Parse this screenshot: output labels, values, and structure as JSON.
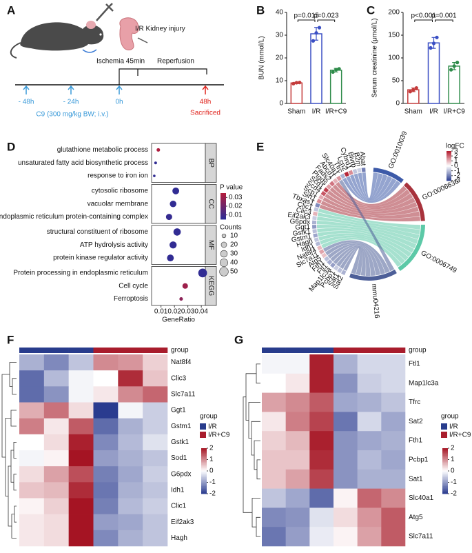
{
  "panel_a": {
    "letter": "A",
    "injury": "I/R Kidney injury",
    "ischemia": "Ischemia 45min",
    "reperfusion": "Reperfusion",
    "timepoints": [
      "- 48h",
      "- 24h",
      "0h",
      "48h"
    ],
    "treatment": "C9 (300 mg/kg BW; i.v.)",
    "endpoint": "Sacrificed"
  },
  "chart_data": [
    {
      "type": "bar",
      "panel": "B",
      "ylabel": "BUN (mmol/L)",
      "categories": [
        "Sham",
        "I/R",
        "I/R+C9"
      ],
      "values": [
        9.0,
        30.6,
        14.6
      ],
      "errors": [
        0.3,
        2.8,
        0.8
      ],
      "points": [
        [
          8.7,
          9.1,
          9.2
        ],
        [
          27.5,
          31.0,
          33.3
        ],
        [
          13.8,
          14.8,
          15.2
        ]
      ],
      "colors": [
        "#c43b3b",
        "#3a4fc4",
        "#2e8b4a"
      ],
      "ylim": [
        0,
        40
      ],
      "yticks": [
        0,
        10,
        20,
        30,
        40
      ],
      "annotations": [
        {
          "text": "p=0.015",
          "from": 0,
          "to": 1
        },
        {
          "text": "p=0.023",
          "from": 1,
          "to": 2
        }
      ]
    },
    {
      "type": "bar",
      "panel": "C",
      "ylabel": "Serum creatinine (μmol/L)",
      "categories": [
        "Sham",
        "I/R",
        "I/R+C9"
      ],
      "values": [
        30,
        133,
        82
      ],
      "errors": [
        4,
        12,
        8
      ],
      "points": [
        [
          26,
          30,
          34
        ],
        [
          122,
          132,
          145
        ],
        [
          74,
          82,
          90
        ]
      ],
      "colors": [
        "#c43b3b",
        "#3a4fc4",
        "#2e8b4a"
      ],
      "ylim": [
        0,
        200
      ],
      "yticks": [
        0,
        50,
        100,
        150,
        200
      ],
      "annotations": [
        {
          "text": "p<0.001",
          "from": 0,
          "to": 1
        },
        {
          "text": "p=0.001",
          "from": 1,
          "to": 2
        }
      ]
    },
    {
      "type": "dotplot",
      "panel": "D",
      "xlabel": "GeneRatio",
      "xlim": [
        0.003,
        0.043
      ],
      "xticks": [
        0.01,
        0.02,
        0.03,
        0.04
      ],
      "groups": [
        {
          "name": "BP",
          "terms": [
            "glutathione metabolic process",
            "unsaturated fatty acid biosynthetic process",
            "response to iron ion"
          ],
          "x": [
            0.008,
            0.006,
            0.005
          ],
          "counts": [
            8,
            5,
            4
          ],
          "pvalues": [
            0.034,
            0.006,
            0.006
          ]
        },
        {
          "name": "CC",
          "terms": [
            "cytosolic ribosome",
            "vacuolar membrane",
            "endoplasmic reticulum protein-containing complex"
          ],
          "x": [
            0.021,
            0.019,
            0.016
          ],
          "counts": [
            30,
            28,
            25
          ],
          "pvalues": [
            0.006,
            0.006,
            0.007
          ]
        },
        {
          "name": "MF",
          "terms": [
            "structural constituent of ribosome",
            "ATP hydrolysis activity",
            "protein kinase regulator activity"
          ],
          "x": [
            0.022,
            0.019,
            0.017
          ],
          "counts": [
            35,
            33,
            30
          ],
          "pvalues": [
            0.006,
            0.006,
            0.006
          ]
        },
        {
          "name": "KEGG",
          "terms": [
            "Protein processing in endoplasmic reticulum",
            "Cell cycle",
            "Ferroptosis"
          ],
          "x": [
            0.041,
            0.028,
            0.025
          ],
          "counts": [
            50,
            20,
            8
          ],
          "pvalues": [
            0.006,
            0.03,
            0.026
          ]
        }
      ],
      "color_title": "P value",
      "clim": [
        0.005,
        0.035
      ],
      "cticks": [
        0.03,
        0.02,
        0.01
      ],
      "size_title": "Counts",
      "size_ticks": [
        10,
        20,
        30,
        40,
        50
      ]
    },
    {
      "type": "chord",
      "panel": "E",
      "terms": [
        "GO:0010039",
        "GO:0006636",
        "GO:0006749",
        "mmu04216"
      ],
      "term_colors": [
        "#3d5aa8",
        "#a8323c",
        "#5cc9a7",
        "#4d5f98"
      ],
      "genes": [
        "Sat2",
        "Sat1",
        "Pcbp1",
        "Map1lc3a",
        "Ftl1",
        "Fth1",
        "Atg5",
        "Slc7a11",
        "Nat8f4",
        "Idh1",
        "Hagh",
        "Gstm1",
        "Gstk1",
        "Ggt1",
        "G6pdx",
        "Eif2ak3",
        "Clic3",
        "Clic1",
        "Tbxas1",
        "Sirt1",
        "Scp1",
        "Scd4",
        "Scd1",
        "Ptgds",
        "Fads2",
        "Abcd1",
        "Slc40a1",
        "Tfrc",
        "Lcn2",
        "Cybrd1",
        "Blvrb",
        "B2m",
        "Abat"
      ],
      "logfc": [
        -1.2,
        -1.0,
        -0.8,
        -1.5,
        -1.3,
        -1.0,
        0.8,
        1.2,
        0.9,
        -1.1,
        -0.9,
        -1.4,
        -1.0,
        -1.6,
        -1.2,
        -0.8,
        1.0,
        -0.9,
        -1.8,
        1.5,
        1.1,
        2.2,
        2.5,
        1.3,
        1.8,
        1.0,
        1.4,
        -1.2,
        2.8,
        1.5,
        -0.9,
        -0.7,
        -2.0
      ],
      "gene_term": [
        3,
        3,
        3,
        3,
        3,
        3,
        3,
        3,
        2,
        2,
        2,
        2,
        2,
        2,
        2,
        2,
        2,
        2,
        1,
        1,
        1,
        1,
        1,
        1,
        1,
        1,
        3,
        0,
        0,
        0,
        0,
        0,
        0
      ],
      "legend_title": "logFC",
      "clim": [
        -3,
        3
      ],
      "cticks": [
        3,
        2,
        1,
        0,
        -1,
        -2,
        -3
      ]
    },
    {
      "type": "heatmap",
      "panel": "F",
      "group_title": "group",
      "groups": [
        "I/R",
        "I/R+C9"
      ],
      "group_colors": [
        "#283c8c",
        "#a81c2c"
      ],
      "column_groups": [
        0,
        0,
        0,
        1,
        1,
        1
      ],
      "rows": [
        "Nat8f4",
        "Clic3",
        "Slc7a11",
        "Ggt1",
        "Gstm1",
        "Gstk1",
        "Sod1",
        "G6pdx",
        "Idh1",
        "Clic1",
        "Eif2ak3",
        "Hagh"
      ],
      "values": [
        [
          -0.8,
          -1.2,
          -0.6,
          1.0,
          0.9,
          0.4
        ],
        [
          -1.5,
          -0.7,
          -0.1,
          0.0,
          1.8,
          0.5
        ],
        [
          -1.5,
          -1.1,
          -0.1,
          0.2,
          1.0,
          1.3
        ],
        [
          0.7,
          1.2,
          0.3,
          -2.0,
          -0.1,
          -0.5
        ],
        [
          1.1,
          0.2,
          1.4,
          -1.5,
          -0.8,
          -0.5
        ],
        [
          0.0,
          0.3,
          1.9,
          -1.2,
          -0.7,
          -0.3
        ],
        [
          -0.1,
          0.1,
          2.0,
          -1.0,
          -0.8,
          -0.6
        ],
        [
          0.3,
          0.8,
          1.5,
          -1.3,
          -0.9,
          -0.5
        ],
        [
          0.5,
          0.6,
          1.8,
          -1.4,
          -0.8,
          -0.6
        ],
        [
          0.1,
          0.4,
          2.0,
          -1.3,
          -0.7,
          -0.5
        ],
        [
          0.2,
          0.3,
          2.0,
          -1.0,
          -0.9,
          -0.6
        ],
        [
          0.2,
          0.3,
          2.0,
          -1.2,
          -0.8,
          -0.6
        ]
      ],
      "clim": [
        -2,
        2
      ],
      "cticks": [
        2,
        1,
        0,
        -1,
        -2
      ]
    },
    {
      "type": "heatmap",
      "panel": "G",
      "group_title": "group",
      "groups": [
        "I/R",
        "I/R+C9"
      ],
      "group_colors": [
        "#283c8c",
        "#a81c2c"
      ],
      "column_groups": [
        0,
        0,
        0,
        1,
        1,
        1
      ],
      "rows": [
        "Ftl1",
        "Map1lc3a",
        "Tfrc",
        "Sat2",
        "Fth1",
        "Pcbp1",
        "Sat1",
        "Slc40a1",
        "Atg5",
        "Slc7a11"
      ],
      "values": [
        [
          -0.1,
          -0.1,
          1.9,
          -0.8,
          -0.4,
          -0.4
        ],
        [
          0.0,
          0.2,
          1.9,
          -1.1,
          -0.5,
          -0.4
        ],
        [
          0.8,
          1.0,
          1.4,
          -0.9,
          -0.8,
          -0.6
        ],
        [
          0.2,
          1.1,
          1.6,
          -1.4,
          -0.4,
          -0.9
        ],
        [
          0.4,
          0.6,
          1.9,
          -1.1,
          -0.9,
          -0.8
        ],
        [
          0.5,
          0.5,
          1.8,
          -1.1,
          -0.7,
          -0.9
        ],
        [
          0.5,
          0.8,
          1.6,
          -1.1,
          -0.8,
          -0.8
        ],
        [
          -0.6,
          -0.9,
          -1.5,
          0.1,
          1.3,
          1.0
        ],
        [
          -1.2,
          -1.1,
          -0.3,
          0.3,
          0.9,
          1.4
        ],
        [
          -1.4,
          -1.0,
          -0.2,
          0.1,
          0.8,
          1.4
        ]
      ],
      "clim": [
        -2,
        2
      ],
      "cticks": [
        2,
        1,
        0,
        -1,
        -2
      ]
    }
  ]
}
